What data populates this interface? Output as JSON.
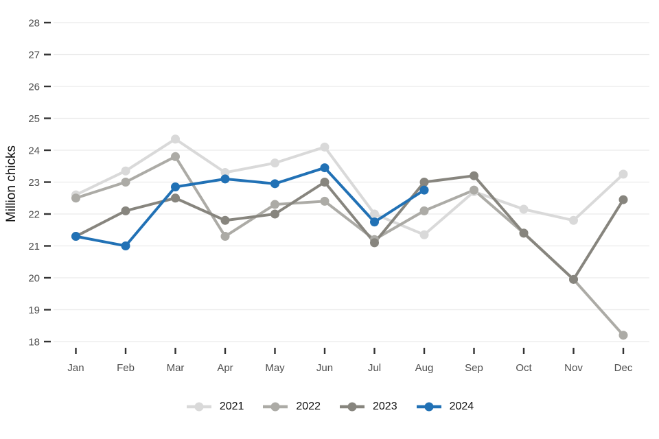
{
  "chart_data": {
    "type": "line",
    "title": "",
    "xlabel": "",
    "ylabel": "Million chicks",
    "categories": [
      "Jan",
      "Feb",
      "Mar",
      "Apr",
      "May",
      "Jun",
      "Jul",
      "Aug",
      "Sep",
      "Oct",
      "Nov",
      "Dec"
    ],
    "y_ticks": [
      18,
      19,
      20,
      21,
      22,
      23,
      24,
      25,
      26,
      27,
      28
    ],
    "ylim": [
      17.8,
      28.2
    ],
    "grid": "horizontal-major-only",
    "legend_position": "bottom-center",
    "marker": "filled-circle",
    "series": [
      {
        "name": "2021",
        "color": "#d9d9d9",
        "values": [
          22.6,
          23.35,
          24.35,
          23.3,
          23.6,
          24.1,
          22.0,
          21.35,
          22.7,
          22.15,
          21.8,
          23.25
        ]
      },
      {
        "name": "2022",
        "color": "#acaba6",
        "values": [
          22.5,
          23.0,
          23.8,
          21.3,
          22.3,
          22.4,
          21.2,
          22.1,
          22.75,
          21.4,
          19.95,
          18.2
        ]
      },
      {
        "name": "2023",
        "color": "#87857e",
        "values": [
          21.3,
          22.1,
          22.5,
          21.8,
          22.0,
          23.0,
          21.1,
          23.0,
          23.2,
          21.4,
          19.95,
          22.45
        ]
      },
      {
        "name": "2024",
        "color": "#2171b5",
        "values": [
          21.3,
          21.0,
          22.85,
          23.1,
          22.95,
          23.45,
          21.75,
          22.75,
          null,
          null,
          null,
          null
        ]
      }
    ],
    "style": {
      "gridline_color": "#ebebeb",
      "tick_mark_color": "#333333",
      "axis_text_color": "#4d4d4d",
      "legend_text_color": "#111111",
      "background": "#ffffff"
    }
  }
}
